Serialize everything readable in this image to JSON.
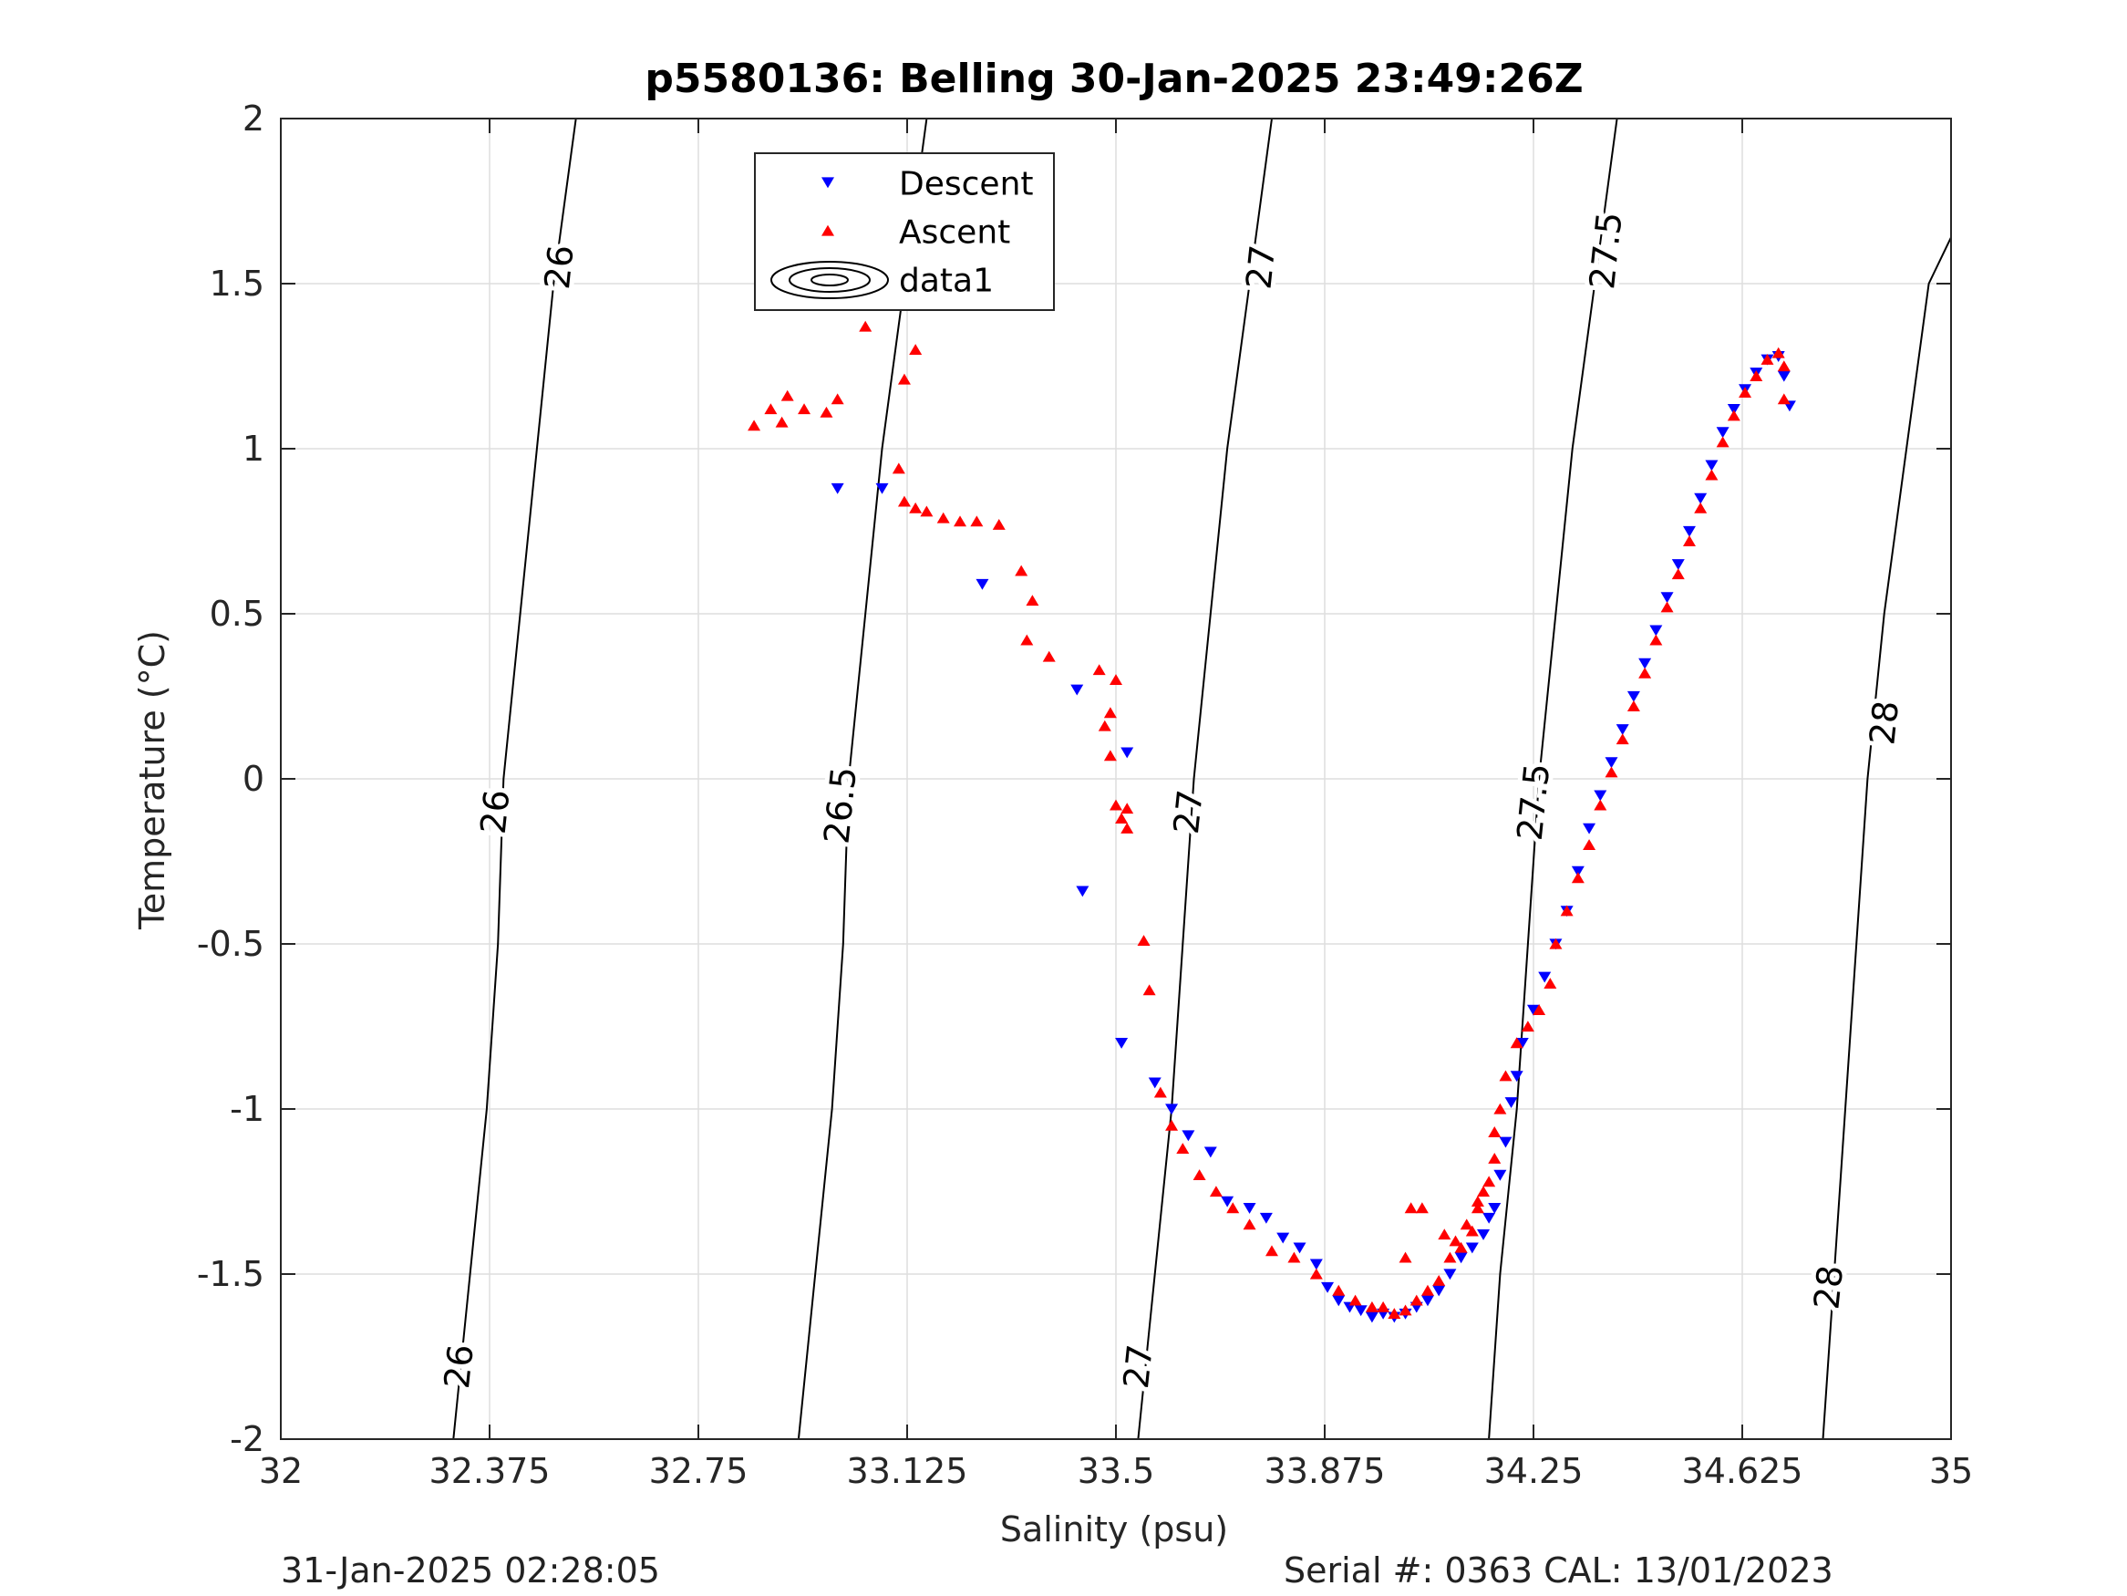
{
  "chart_data": {
    "type": "scatter",
    "title": "p5580136: Belling 30-Jan-2025 23:49:26Z",
    "xlabel": "Salinity (psu)",
    "ylabel": "Temperature (°C)",
    "xlim": [
      32,
      35
    ],
    "ylim": [
      -2,
      2
    ],
    "xticks": [
      "32",
      "32.375",
      "32.75",
      "33.125",
      "33.5",
      "33.875",
      "34.25",
      "34.625",
      "35"
    ],
    "xtick_values": [
      32,
      32.375,
      32.75,
      33.125,
      33.5,
      33.875,
      34.25,
      34.625,
      35
    ],
    "yticks": [
      "-2",
      "-1.5",
      "-1",
      "-0.5",
      "0",
      "0.5",
      "1",
      "1.5",
      "2"
    ],
    "ytick_values": [
      -2,
      -1.5,
      -1,
      -0.5,
      0,
      0.5,
      1,
      1.5,
      2
    ],
    "grid": true,
    "legend_position": "top-center",
    "legend": [
      "Descent",
      "Ascent",
      "data1"
    ],
    "footer_left": "31-Jan-2025 02:28:05",
    "footer_right": "Serial #: 0363  CAL: 13/01/2023",
    "density_contours": {
      "name": "data1",
      "levels": [
        "26",
        "26.5",
        "27",
        "27.5",
        "28"
      ],
      "lines": [
        {
          "level": "26",
          "points": [
            [
              32.31,
              -2
            ],
            [
              32.34,
              -1.5
            ],
            [
              32.37,
              -1
            ],
            [
              32.39,
              -0.5
            ],
            [
              32.4,
              0
            ],
            [
              32.43,
              0.5
            ],
            [
              32.46,
              1
            ],
            [
              32.49,
              1.5
            ],
            [
              32.53,
              2
            ]
          ],
          "labels": [
            [
              32.32,
              -1.78
            ],
            [
              32.385,
              -0.1
            ],
            [
              32.5,
              1.55
            ]
          ]
        },
        {
          "level": "26.5",
          "points": [
            [
              32.93,
              -2
            ],
            [
              32.96,
              -1.5
            ],
            [
              32.99,
              -1
            ],
            [
              33.01,
              -0.5
            ],
            [
              33.02,
              0
            ],
            [
              33.05,
              0.5
            ],
            [
              33.08,
              1
            ],
            [
              33.12,
              1.5
            ],
            [
              33.16,
              2
            ]
          ],
          "labels": [
            [
              33.005,
              -0.08
            ],
            [
              33.14,
              1.6
            ]
          ]
        },
        {
          "level": "27",
          "points": [
            [
              33.54,
              -2
            ],
            [
              33.57,
              -1.5
            ],
            [
              33.6,
              -1
            ],
            [
              33.62,
              -0.5
            ],
            [
              33.64,
              0
            ],
            [
              33.67,
              0.5
            ],
            [
              33.7,
              1
            ],
            [
              33.74,
              1.5
            ],
            [
              33.78,
              2
            ]
          ],
          "labels": [
            [
              33.54,
              -1.78
            ],
            [
              33.63,
              -0.1
            ],
            [
              33.76,
              1.55
            ]
          ]
        },
        {
          "level": "27.5",
          "points": [
            [
              34.17,
              -2
            ],
            [
              34.19,
              -1.5
            ],
            [
              34.22,
              -1
            ],
            [
              34.24,
              -0.5
            ],
            [
              34.26,
              0
            ],
            [
              34.29,
              0.5
            ],
            [
              34.32,
              1
            ],
            [
              34.36,
              1.5
            ],
            [
              34.4,
              2
            ]
          ],
          "labels": [
            [
              34.25,
              -0.07
            ],
            [
              34.38,
              1.6
            ]
          ]
        },
        {
          "level": "28",
          "points": [
            [
              34.77,
              -2
            ],
            [
              34.79,
              -1.5
            ],
            [
              34.81,
              -1
            ],
            [
              34.83,
              -0.5
            ],
            [
              34.85,
              0
            ],
            [
              34.88,
              0.5
            ],
            [
              34.92,
              1
            ],
            [
              34.96,
              1.5
            ],
            [
              35.0,
              1.64
            ]
          ],
          "labels": [
            [
              34.78,
              -1.54
            ],
            [
              34.88,
              0.17
            ]
          ]
        }
      ]
    },
    "series": [
      {
        "name": "Descent",
        "color": "#0000ff",
        "marker": "triangle-down",
        "points": [
          [
            33.0,
            0.88
          ],
          [
            33.08,
            0.88
          ],
          [
            33.26,
            0.59
          ],
          [
            33.43,
            0.27
          ],
          [
            33.52,
            0.08
          ],
          [
            33.44,
            -0.34
          ],
          [
            33.51,
            -0.8
          ],
          [
            33.57,
            -0.92
          ],
          [
            33.6,
            -1.0
          ],
          [
            33.63,
            -1.08
          ],
          [
            33.67,
            -1.13
          ],
          [
            33.7,
            -1.28
          ],
          [
            33.74,
            -1.3
          ],
          [
            33.77,
            -1.33
          ],
          [
            33.8,
            -1.39
          ],
          [
            33.83,
            -1.42
          ],
          [
            33.86,
            -1.47
          ],
          [
            33.88,
            -1.54
          ],
          [
            33.9,
            -1.58
          ],
          [
            33.92,
            -1.6
          ],
          [
            33.94,
            -1.61
          ],
          [
            33.96,
            -1.63
          ],
          [
            33.98,
            -1.62
          ],
          [
            34.0,
            -1.63
          ],
          [
            34.02,
            -1.62
          ],
          [
            34.04,
            -1.6
          ],
          [
            34.06,
            -1.58
          ],
          [
            34.08,
            -1.55
          ],
          [
            34.1,
            -1.5
          ],
          [
            34.12,
            -1.45
          ],
          [
            34.14,
            -1.42
          ],
          [
            34.16,
            -1.38
          ],
          [
            34.17,
            -1.33
          ],
          [
            34.18,
            -1.3
          ],
          [
            34.19,
            -1.2
          ],
          [
            34.2,
            -1.1
          ],
          [
            34.21,
            -0.98
          ],
          [
            34.22,
            -0.9
          ],
          [
            34.23,
            -0.8
          ],
          [
            34.25,
            -0.7
          ],
          [
            34.27,
            -0.6
          ],
          [
            34.29,
            -0.5
          ],
          [
            34.31,
            -0.4
          ],
          [
            34.33,
            -0.28
          ],
          [
            34.35,
            -0.15
          ],
          [
            34.37,
            -0.05
          ],
          [
            34.39,
            0.05
          ],
          [
            34.41,
            0.15
          ],
          [
            34.43,
            0.25
          ],
          [
            34.45,
            0.35
          ],
          [
            34.47,
            0.45
          ],
          [
            34.49,
            0.55
          ],
          [
            34.51,
            0.65
          ],
          [
            34.53,
            0.75
          ],
          [
            34.55,
            0.85
          ],
          [
            34.57,
            0.95
          ],
          [
            34.59,
            1.05
          ],
          [
            34.61,
            1.12
          ],
          [
            34.63,
            1.18
          ],
          [
            34.65,
            1.23
          ],
          [
            34.67,
            1.27
          ],
          [
            34.69,
            1.28
          ],
          [
            34.7,
            1.22
          ],
          [
            34.71,
            1.13
          ]
        ]
      },
      {
        "name": "Ascent",
        "color": "#ff0000",
        "marker": "triangle-up",
        "points": [
          [
            32.85,
            1.07
          ],
          [
            32.88,
            1.12
          ],
          [
            32.9,
            1.08
          ],
          [
            32.91,
            1.16
          ],
          [
            32.94,
            1.12
          ],
          [
            32.98,
            1.11
          ],
          [
            33.0,
            1.15
          ],
          [
            33.05,
            1.37
          ],
          [
            33.12,
            1.21
          ],
          [
            33.14,
            1.3
          ],
          [
            33.11,
            0.94
          ],
          [
            33.12,
            0.84
          ],
          [
            33.14,
            0.82
          ],
          [
            33.16,
            0.81
          ],
          [
            33.19,
            0.79
          ],
          [
            33.22,
            0.78
          ],
          [
            33.25,
            0.78
          ],
          [
            33.29,
            0.77
          ],
          [
            33.33,
            0.63
          ],
          [
            33.35,
            0.54
          ],
          [
            33.34,
            0.42
          ],
          [
            33.38,
            0.37
          ],
          [
            33.47,
            0.33
          ],
          [
            33.5,
            0.3
          ],
          [
            33.49,
            0.2
          ],
          [
            33.48,
            0.16
          ],
          [
            33.49,
            0.07
          ],
          [
            33.5,
            -0.08
          ],
          [
            33.51,
            -0.12
          ],
          [
            33.52,
            -0.09
          ],
          [
            33.52,
            -0.15
          ],
          [
            33.55,
            -0.49
          ],
          [
            33.56,
            -0.64
          ],
          [
            33.58,
            -0.95
          ],
          [
            33.6,
            -1.05
          ],
          [
            33.62,
            -1.12
          ],
          [
            33.65,
            -1.2
          ],
          [
            33.68,
            -1.25
          ],
          [
            33.71,
            -1.3
          ],
          [
            33.74,
            -1.35
          ],
          [
            33.78,
            -1.43
          ],
          [
            33.82,
            -1.45
          ],
          [
            33.86,
            -1.5
          ],
          [
            33.9,
            -1.55
          ],
          [
            33.93,
            -1.58
          ],
          [
            33.96,
            -1.6
          ],
          [
            33.98,
            -1.6
          ],
          [
            34.0,
            -1.62
          ],
          [
            34.02,
            -1.61
          ],
          [
            34.04,
            -1.58
          ],
          [
            34.06,
            -1.55
          ],
          [
            34.08,
            -1.52
          ],
          [
            34.1,
            -1.45
          ],
          [
            34.11,
            -1.4
          ],
          [
            34.13,
            -1.35
          ],
          [
            34.15,
            -1.3
          ],
          [
            34.12,
            -1.42
          ],
          [
            34.14,
            -1.37
          ],
          [
            34.15,
            -1.28
          ],
          [
            34.16,
            -1.25
          ],
          [
            34.17,
            -1.22
          ],
          [
            34.18,
            -1.15
          ],
          [
            34.18,
            -1.07
          ],
          [
            34.19,
            -1.0
          ],
          [
            34.2,
            -0.9
          ],
          [
            34.22,
            -0.8
          ],
          [
            34.24,
            -0.75
          ],
          [
            34.26,
            -0.7
          ],
          [
            34.28,
            -0.62
          ],
          [
            34.29,
            -0.5
          ],
          [
            34.31,
            -0.4
          ],
          [
            34.33,
            -0.3
          ],
          [
            34.35,
            -0.2
          ],
          [
            34.37,
            -0.08
          ],
          [
            34.39,
            0.02
          ],
          [
            34.41,
            0.12
          ],
          [
            34.43,
            0.22
          ],
          [
            34.45,
            0.32
          ],
          [
            34.47,
            0.42
          ],
          [
            34.49,
            0.52
          ],
          [
            34.51,
            0.62
          ],
          [
            34.53,
            0.72
          ],
          [
            34.55,
            0.82
          ],
          [
            34.57,
            0.92
          ],
          [
            34.59,
            1.02
          ],
          [
            34.61,
            1.1
          ],
          [
            34.63,
            1.17
          ],
          [
            34.65,
            1.22
          ],
          [
            34.67,
            1.27
          ],
          [
            34.69,
            1.29
          ],
          [
            34.7,
            1.25
          ],
          [
            34.7,
            1.15
          ],
          [
            34.03,
            -1.3
          ],
          [
            34.05,
            -1.3
          ],
          [
            34.02,
            -1.45
          ],
          [
            34.09,
            -1.38
          ]
        ]
      }
    ]
  }
}
